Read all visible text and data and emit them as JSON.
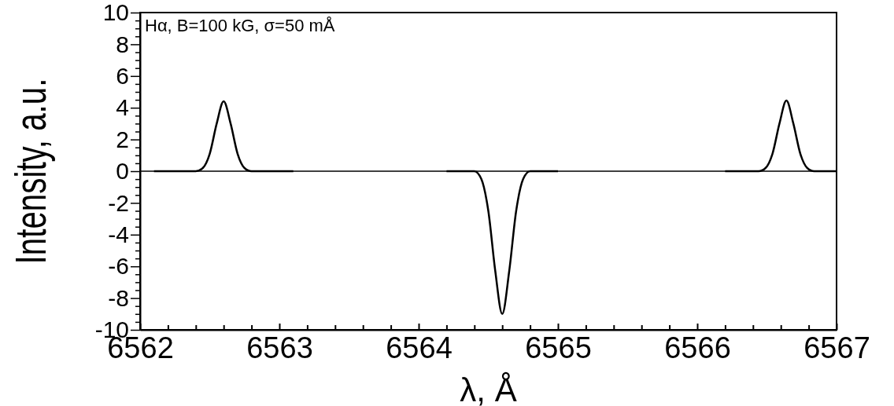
{
  "chart_data": {
    "type": "line",
    "xlabel": "λ, Å",
    "ylabel": "Intensity, a.u.",
    "annotations": [
      "Hα, B=100 kG, σ=50 mÅ"
    ],
    "xlim": [
      6562,
      6567
    ],
    "ylim": [
      -10,
      10
    ],
    "xticks": [
      6562,
      {
        "value": 6562.2,
        "label": null
      },
      {
        "value": 6562.4,
        "label": null
      },
      {
        "value": 6562.6,
        "label": null
      },
      {
        "value": 6562.8,
        "label": null
      },
      6563,
      {
        "value": 6563.2,
        "label": null
      },
      {
        "value": 6563.4,
        "label": null
      },
      {
        "value": 6563.6,
        "label": null
      },
      {
        "value": 6563.8,
        "label": null
      },
      6564,
      {
        "value": 6564.2,
        "label": null
      },
      {
        "value": 6564.4,
        "label": null
      },
      {
        "value": 6564.6,
        "label": null
      },
      {
        "value": 6564.8,
        "label": null
      },
      6565,
      {
        "value": 6565.2,
        "label": null
      },
      {
        "value": 6565.4,
        "label": null
      },
      {
        "value": 6565.6,
        "label": null
      },
      {
        "value": 6565.8,
        "label": null
      },
      6566,
      {
        "value": 6566.2,
        "label": null
      },
      {
        "value": 6566.4,
        "label": null
      },
      {
        "value": 6566.6,
        "label": null
      },
      {
        "value": 6566.8,
        "label": null
      },
      6567
    ],
    "yticks": [
      -10,
      {
        "value": -9.5,
        "label": null
      },
      {
        "value": -9,
        "label": null
      },
      {
        "value": -8.5,
        "label": null
      },
      -8,
      {
        "value": -7.5,
        "label": null
      },
      {
        "value": -7,
        "label": null
      },
      {
        "value": -6.5,
        "label": null
      },
      -6,
      {
        "value": -5.5,
        "label": null
      },
      {
        "value": -5,
        "label": null
      },
      {
        "value": -4.5,
        "label": null
      },
      -4,
      {
        "value": -3.5,
        "label": null
      },
      {
        "value": -3,
        "label": null
      },
      {
        "value": -2.5,
        "label": null
      },
      -2,
      {
        "value": -1.5,
        "label": null
      },
      {
        "value": -1,
        "label": null
      },
      {
        "value": -0.5,
        "label": null
      },
      0,
      {
        "value": 0.5,
        "label": null
      },
      {
        "value": 1,
        "label": null
      },
      {
        "value": 1.5,
        "label": null
      },
      2,
      {
        "value": 2.5,
        "label": null
      },
      {
        "value": 3,
        "label": null
      },
      {
        "value": 3.5,
        "label": null
      },
      4,
      {
        "value": 4.5,
        "label": null
      },
      {
        "value": 5,
        "label": null
      },
      {
        "value": 5.5,
        "label": null
      },
      6,
      {
        "value": 6.5,
        "label": null
      },
      {
        "value": 7,
        "label": null
      },
      {
        "value": 7.5,
        "label": null
      },
      8,
      {
        "value": 8.5,
        "label": null
      },
      {
        "value": 9,
        "label": null
      },
      {
        "value": 9.5,
        "label": null
      },
      10
    ],
    "ref_lines": [
      {
        "axis": "y",
        "value": 0,
        "color": "#000000"
      }
    ],
    "series": [
      {
        "color": "#000000",
        "x": [
          6562.1,
          6562.4,
          6562.45,
          6562.5,
          6562.55,
          6562.6,
          6562.65,
          6562.7,
          6562.75,
          6562.8,
          6563.1,
          6563.2,
          6564.2,
          6564.4,
          6564.45,
          6564.5,
          6564.55,
          6564.6,
          6564.65,
          6564.7,
          6564.75,
          6564.8,
          6565.0,
          6566.1,
          6566.2,
          6566.44,
          6566.49,
          6566.54,
          6566.59,
          6566.64,
          6566.69,
          6566.74,
          6566.79,
          6566.84,
          6567.0
        ],
        "values": [
          0,
          0,
          0.2,
          1.1,
          3.0,
          4.4,
          3.0,
          1.1,
          0.2,
          0,
          0,
          null,
          0,
          0,
          -0.5,
          -2.5,
          -6.3,
          -9.0,
          -6.3,
          -2.5,
          -0.5,
          0,
          0,
          null,
          0,
          0,
          0.2,
          1.1,
          3.0,
          4.45,
          3.0,
          1.1,
          0.2,
          0,
          0
        ]
      }
    ],
    "grid": false,
    "marker": "none",
    "line_style": "solid"
  }
}
